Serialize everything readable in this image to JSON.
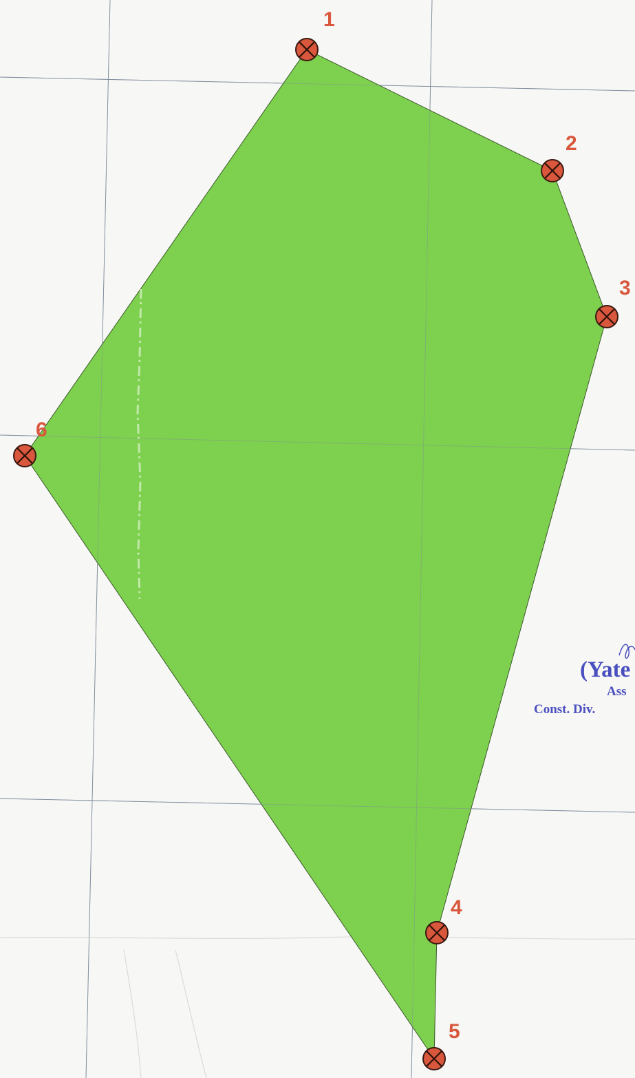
{
  "map": {
    "points": [
      {
        "id": "1",
        "label": "1"
      },
      {
        "id": "2",
        "label": "2"
      },
      {
        "id": "3",
        "label": "3"
      },
      {
        "id": "4",
        "label": "4"
      },
      {
        "id": "5",
        "label": "5"
      },
      {
        "id": "6",
        "label": "6"
      }
    ],
    "colors": {
      "parcel_fill": "#7ed04f",
      "marker_fill": "#d9573c",
      "label_color": "#d9573c",
      "stamp_color": "#4a4fbf",
      "grid_color": "#7f8c9c"
    }
  },
  "stamp": {
    "name": "(Yate",
    "line1": "Ass",
    "line2": "Const. Div."
  }
}
